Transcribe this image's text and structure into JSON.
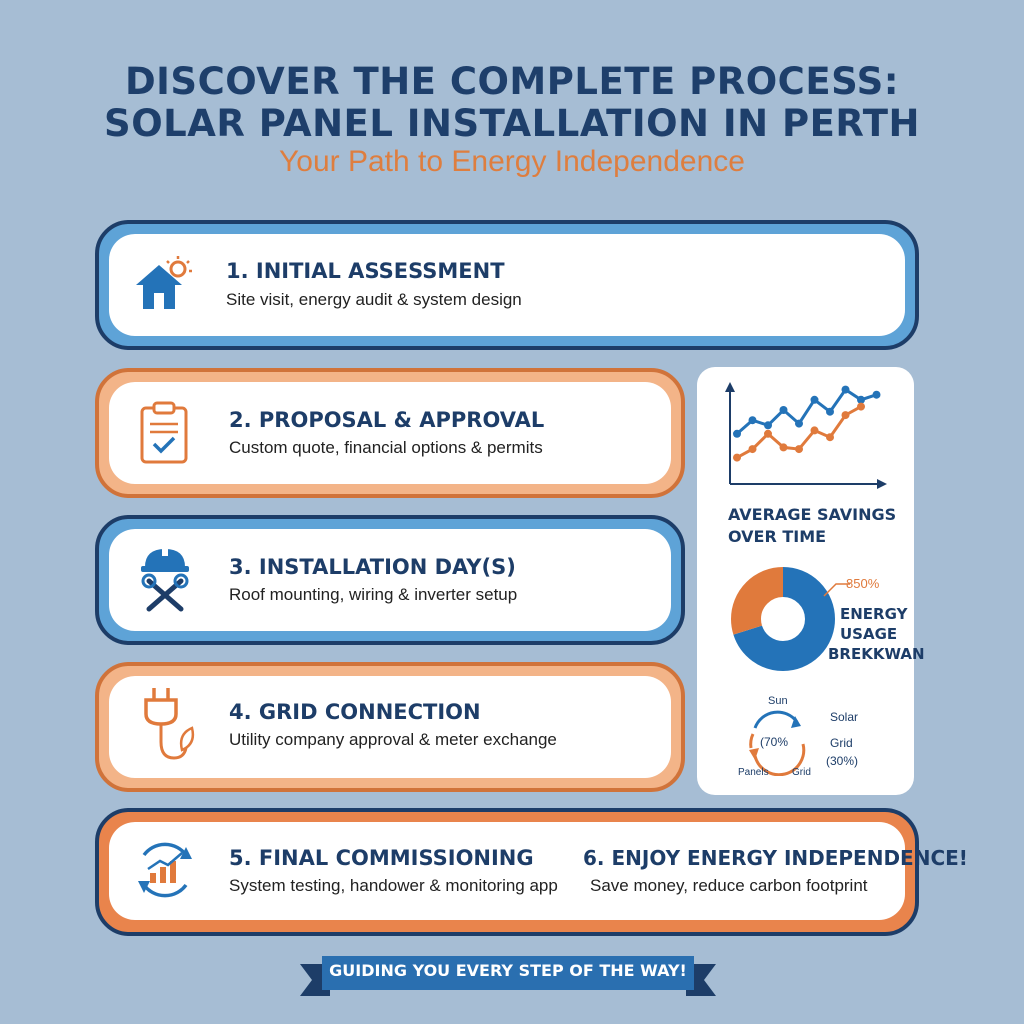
{
  "header": {
    "title_line1": "DISCOVER THE COMPLETE PROCESS:",
    "title_line2": "SOLAR PANEL INSTALLATION IN PERTH",
    "subtitle": "Your Path to Energy Independence"
  },
  "steps": [
    {
      "title": "1. INITIAL ASSESSMENT",
      "desc": "Site visit, energy audit & system design",
      "icon": "house-sun-icon"
    },
    {
      "title": "2. PROPOSAL & APPROVAL",
      "desc": "Custom quote, financial options & permits",
      "icon": "clipboard-check-icon"
    },
    {
      "title": "3. INSTALLATION DAY(S)",
      "desc": "Roof mounting, wiring & inverter setup",
      "icon": "hardhat-tools-icon"
    },
    {
      "title": "4. GRID CONNECTION",
      "desc": "Utility company approval & meter exchange",
      "icon": "plug-leaf-icon"
    },
    {
      "title": "5. FINAL COMMISSIONING",
      "desc": "System testing, handower & monitoring app",
      "icon": "cycle-chart-icon"
    },
    {
      "title": "6. ENJOY ENERGY INDEPENDENCE!",
      "desc": "Save money, reduce carbon footprint"
    }
  ],
  "sidebar": {
    "savings_label_line1": "AVERAGE SAVINGS",
    "savings_label_line2": "OVER TIME",
    "donut_percent": "850%",
    "usage_label_line1": "ENERGY",
    "usage_label_line2": "USAGE",
    "usage_label_line3": "BREKKWAN",
    "cycle_sun": "Sun",
    "cycle_solar": "Solar",
    "cycle_pct70": "(70%",
    "cycle_grid": "Grid",
    "cycle_pct30": "(30%)",
    "cycle_panels": "Panels",
    "cycle_grid2": "Grid"
  },
  "chart_data": [
    {
      "type": "line",
      "title": "",
      "series": [
        {
          "values": [
            2.6,
            3.4,
            3.1,
            4.0,
            3.2,
            4.6,
            3.9,
            5.2,
            4.6,
            4.9
          ]
        },
        {
          "values": [
            1.2,
            1.7,
            2.6,
            1.8,
            1.7,
            2.8,
            2.4,
            3.7,
            4.2
          ]
        }
      ]
    },
    {
      "type": "pie",
      "title": "",
      "values": [
        0.7,
        0.3
      ],
      "colors": [
        "#2473b8",
        "#e07a3c"
      ]
    }
  ],
  "footer": {
    "banner_text": "GUIDING YOU EVERY STEP OF THE WAY!"
  },
  "colors": {
    "navy": "#1d3d68",
    "blue": "#2473b8",
    "orange": "#e07a3c",
    "background": "#a6bdd4"
  }
}
